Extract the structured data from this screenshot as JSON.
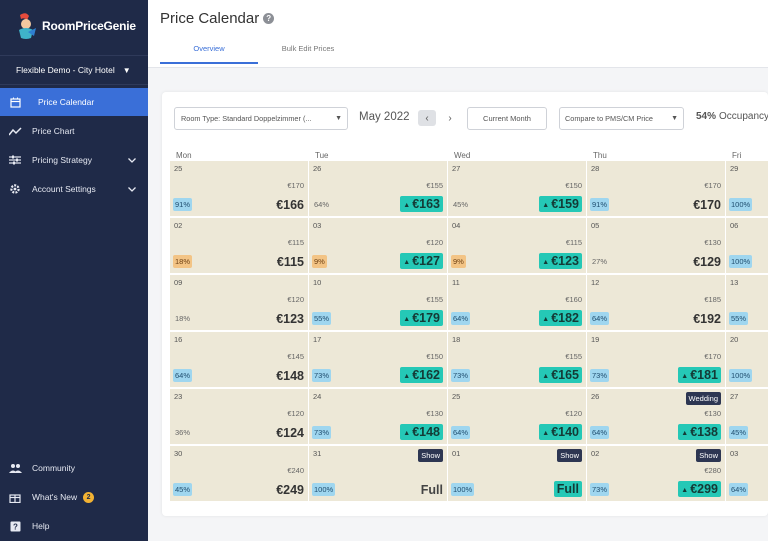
{
  "brand": {
    "name": "RoomPriceGenie"
  },
  "hotel": "Flexible Demo - City Hotel",
  "nav": [
    {
      "label": "Price Calendar",
      "icon": "calendar-icon",
      "active": true
    },
    {
      "label": "Price Chart",
      "icon": "line-chart-icon"
    },
    {
      "label": "Pricing Strategy",
      "icon": "sliders-icon",
      "expandable": true
    },
    {
      "label": "Account Settings",
      "icon": "gear-icon",
      "expandable": true
    }
  ],
  "nav_bottom": [
    {
      "label": "Community",
      "icon": "people-icon"
    },
    {
      "label": "What's New",
      "icon": "gift-icon",
      "badge": "2"
    },
    {
      "label": "Help",
      "icon": "help-icon"
    }
  ],
  "header": {
    "title": "Price Calendar",
    "tabs": [
      "Overview",
      "Bulk Edit Prices"
    ]
  },
  "toolbar": {
    "room_type": "Room Type: Standard Doppelzimmer (...",
    "month": "May 2022",
    "current_month": "Current Month",
    "compare": "Compare to PMS/CM Price",
    "occupancy_value": "54%",
    "occupancy_label": "Occupancy"
  },
  "weekdays": [
    "Mon",
    "Tue",
    "Wed",
    "Thu",
    "Fri"
  ],
  "weeks": [
    [
      {
        "day": "25",
        "ref": "€170",
        "occ": "91%",
        "occ_style": "blue",
        "price": "€166",
        "style": "plain"
      },
      {
        "day": "26",
        "ref": "€155",
        "occ": "64%",
        "occ_style": "plain",
        "price": "€163",
        "style": "up"
      },
      {
        "day": "27",
        "ref": "€150",
        "occ": "45%",
        "occ_style": "plain",
        "price": "€159",
        "style": "up"
      },
      {
        "day": "28",
        "ref": "€170",
        "occ": "91%",
        "occ_style": "blue",
        "price": "€170",
        "style": "plain"
      },
      {
        "day": "29",
        "occ": "100%",
        "occ_style": "blue"
      }
    ],
    [
      {
        "day": "02",
        "ref": "€115",
        "occ": "18%",
        "occ_style": "orange",
        "price": "€115",
        "style": "plain"
      },
      {
        "day": "03",
        "ref": "€120",
        "occ": "9%",
        "occ_style": "orange",
        "price": "€127",
        "style": "up"
      },
      {
        "day": "04",
        "ref": "€115",
        "occ": "9%",
        "occ_style": "orange",
        "price": "€123",
        "style": "up"
      },
      {
        "day": "05",
        "ref": "€130",
        "occ": "27%",
        "occ_style": "plain",
        "price": "€129",
        "style": "plain"
      },
      {
        "day": "06",
        "occ": "100%",
        "occ_style": "blue"
      }
    ],
    [
      {
        "day": "09",
        "ref": "€120",
        "occ": "18%",
        "occ_style": "plain",
        "price": "€123",
        "style": "plain"
      },
      {
        "day": "10",
        "ref": "€155",
        "occ": "55%",
        "occ_style": "blue",
        "price": "€179",
        "style": "up"
      },
      {
        "day": "11",
        "ref": "€160",
        "occ": "64%",
        "occ_style": "blue",
        "price": "€182",
        "style": "up"
      },
      {
        "day": "12",
        "ref": "€185",
        "occ": "64%",
        "occ_style": "blue",
        "price": "€192",
        "style": "plain"
      },
      {
        "day": "13",
        "occ": "55%",
        "occ_style": "blue"
      }
    ],
    [
      {
        "day": "16",
        "ref": "€145",
        "occ": "64%",
        "occ_style": "blue",
        "price": "€148",
        "style": "plain"
      },
      {
        "day": "17",
        "ref": "€150",
        "occ": "73%",
        "occ_style": "blue",
        "price": "€162",
        "style": "up"
      },
      {
        "day": "18",
        "ref": "€155",
        "occ": "73%",
        "occ_style": "blue",
        "price": "€165",
        "style": "up"
      },
      {
        "day": "19",
        "ref": "€170",
        "occ": "73%",
        "occ_style": "blue",
        "price": "€181",
        "style": "up"
      },
      {
        "day": "20",
        "occ": "100%",
        "occ_style": "blue"
      }
    ],
    [
      {
        "day": "23",
        "ref": "€120",
        "occ": "36%",
        "occ_style": "plain",
        "price": "€124",
        "style": "plain"
      },
      {
        "day": "24",
        "ref": "€130",
        "occ": "73%",
        "occ_style": "blue",
        "price": "€148",
        "style": "up"
      },
      {
        "day": "25",
        "ref": "€120",
        "occ": "64%",
        "occ_style": "blue",
        "price": "€140",
        "style": "up"
      },
      {
        "day": "26",
        "ref": "€130",
        "occ": "64%",
        "occ_style": "blue",
        "price": "€138",
        "style": "up",
        "event": "Wedding"
      },
      {
        "day": "27",
        "occ": "45%",
        "occ_style": "blue"
      }
    ],
    [
      {
        "day": "30",
        "ref": "€240",
        "occ": "45%",
        "occ_style": "blue",
        "price": "€249",
        "style": "plain"
      },
      {
        "day": "31",
        "occ": "100%",
        "occ_style": "blue",
        "price": "Full",
        "style": "full-plain",
        "event": "Show"
      },
      {
        "day": "01",
        "occ": "100%",
        "occ_style": "blue",
        "price": "Full",
        "style": "full-teal",
        "event": "Show"
      },
      {
        "day": "02",
        "ref": "€280",
        "occ": "73%",
        "occ_style": "blue",
        "price": "€299",
        "style": "up",
        "event": "Show"
      },
      {
        "day": "03",
        "occ": "64%",
        "occ_style": "blue"
      }
    ]
  ]
}
